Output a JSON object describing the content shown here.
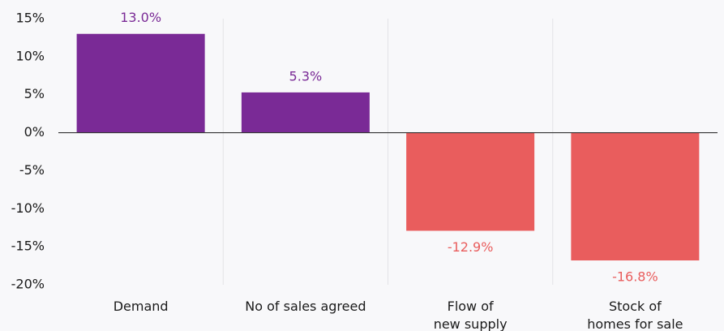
{
  "chart_data": {
    "type": "bar",
    "categories": [
      "Demand",
      "No of sales agreed",
      "Flow of\nnew supply",
      "Stock of\nhomes for sale"
    ],
    "values": [
      13.0,
      5.3,
      -12.9,
      -16.8
    ],
    "value_labels": [
      "13.0%",
      "5.3%",
      "-12.9%",
      "-16.8%"
    ],
    "colors": [
      "#7a2a96",
      "#7a2a96",
      "#e95d5d",
      "#e95d5d"
    ],
    "ylim": [
      -20,
      15
    ],
    "yticks": [
      {
        "value": -20,
        "label": "-20%"
      },
      {
        "value": -15,
        "label": "-15%"
      },
      {
        "value": -10,
        "label": "-10%"
      },
      {
        "value": -5,
        "label": "-5%"
      },
      {
        "value": 0,
        "label": "0%"
      },
      {
        "value": 5,
        "label": "5%"
      },
      {
        "value": 10,
        "label": "10%"
      },
      {
        "value": 15,
        "label": "15%"
      }
    ],
    "grid": false
  }
}
